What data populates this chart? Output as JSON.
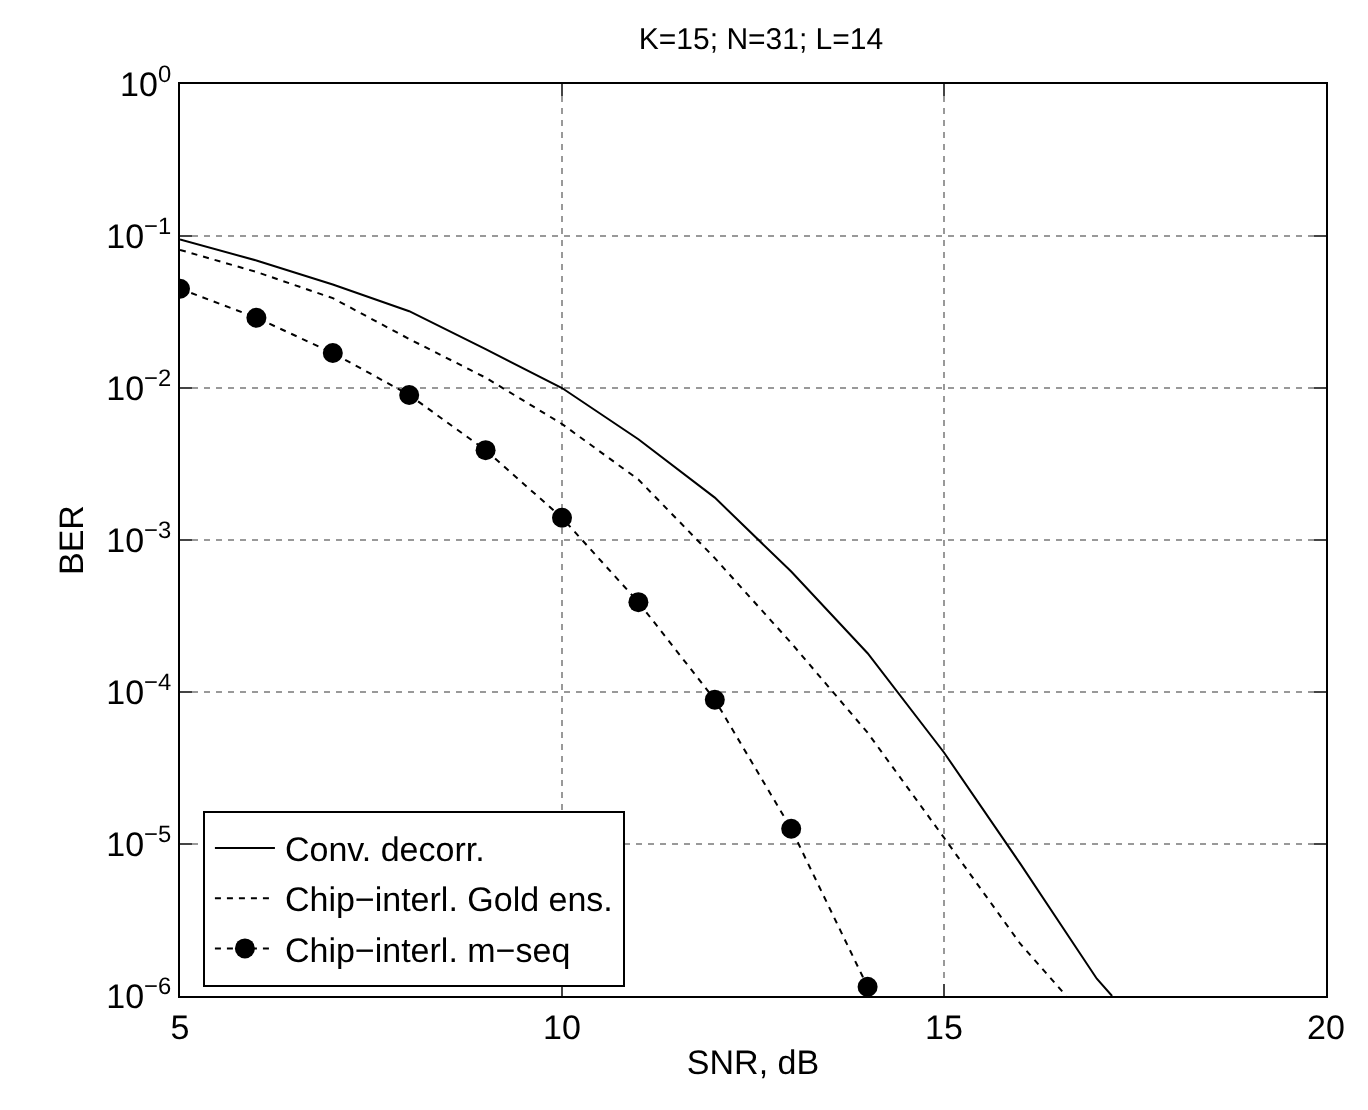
{
  "chart_data": {
    "type": "line",
    "title": "K=15; N=31; L=14",
    "xlabel": "SNR, dB",
    "ylabel": "BER",
    "log": "y",
    "grid": true,
    "legend": "bottom left",
    "xlim": [
      5,
      20
    ],
    "xticks": [
      5,
      10,
      15,
      20
    ],
    "ylim": [
      1e-06,
      1
    ],
    "yticks": [
      {
        "value": 1e-06,
        "label": "10$^{−6}$"
      },
      {
        "value": 1e-05,
        "label": "10$^{−5}$"
      },
      {
        "value": 0.0001,
        "label": "10$^{−4}$"
      },
      {
        "value": 0.001,
        "label": "10$^{−3}$"
      },
      {
        "value": 0.01,
        "label": "10$^{−2}$"
      },
      {
        "value": 0.1,
        "label": "10$^{−1}$"
      },
      {
        "value": 1,
        "label": "10$^{0}$"
      }
    ],
    "series": [
      {
        "name": "Conv. decorr.",
        "color": "#000000",
        "line_style": "solid",
        "marker": "none",
        "x": [
          5,
          6,
          7,
          8,
          9,
          10,
          11,
          12,
          13,
          14,
          15,
          16,
          17,
          17.2
        ],
        "values": [
          0.095,
          0.069,
          0.048,
          0.032,
          0.018,
          0.01,
          0.0046,
          0.0019,
          0.00062,
          0.00018,
          4e-05,
          7.4e-06,
          1.3e-06,
          1e-06
        ]
      },
      {
        "name": "Chip−interl. Gold ens.",
        "color": "#000000",
        "line_style": "dotted",
        "marker": "none",
        "x": [
          5,
          6,
          7,
          8,
          9,
          10,
          11,
          12,
          13,
          14,
          15,
          16,
          16.6
        ],
        "values": [
          0.081,
          0.058,
          0.039,
          0.021,
          0.0117,
          0.0058,
          0.0025,
          0.00076,
          0.00021,
          5.4e-05,
          1.1e-05,
          2.2e-06,
          1e-06
        ]
      },
      {
        "name": "Chip−interl. m−seq",
        "color": "#000000",
        "line_style": "dotted",
        "marker": "circle",
        "x": [
          5,
          6,
          7,
          8,
          9,
          10,
          11,
          12,
          13,
          14
        ],
        "values": [
          0.045,
          0.029,
          0.017,
          0.009,
          0.0039,
          0.0014,
          0.00039,
          8.9e-05,
          1.26e-05,
          1.15e-06
        ]
      }
    ]
  }
}
